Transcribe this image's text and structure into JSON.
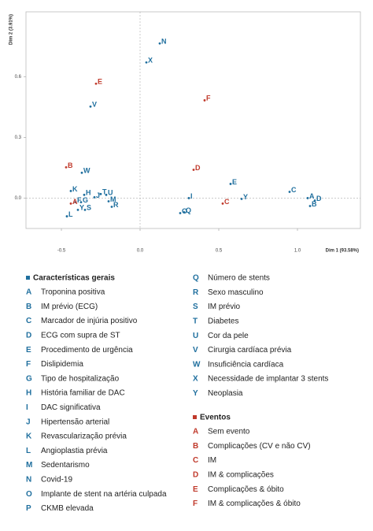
{
  "chart_data": {
    "type": "scatter",
    "x_label": "Dim 1 (93.58%)",
    "y_label": "Dim 2 (3.91%)",
    "xlim": [
      -0.725,
      1.4
    ],
    "ylim": [
      -0.15,
      0.92
    ],
    "xticks": [
      -0.5,
      {
        "value": 0,
        "label": "0.0"
      },
      0.5,
      {
        "value": 1,
        "label": "1.0"
      }
    ],
    "yticks": [
      {
        "value": 0,
        "label": "0.0"
      },
      0.3,
      0.6
    ],
    "series": [
      {
        "name": "Características gerais",
        "color": "#1f6f9e",
        "labels": [
          "N",
          "X",
          "V",
          "W",
          "E",
          "C",
          "K",
          "A",
          "D",
          "B",
          "H",
          "T",
          "U",
          "J",
          "I",
          "Y",
          "F",
          "G",
          "M",
          "R",
          "Y",
          "S",
          "O",
          "Q",
          "L"
        ],
        "x": [
          0.125,
          0.04,
          -0.315,
          -0.37,
          0.575,
          0.95,
          -0.44,
          1.065,
          1.11,
          1.08,
          -0.355,
          -0.25,
          -0.215,
          -0.29,
          0.31,
          0.645,
          -0.41,
          -0.375,
          -0.2,
          -0.18,
          -0.395,
          -0.35,
          0.255,
          0.28,
          -0.465
        ],
        "values": [
          0.764,
          0.67,
          0.452,
          0.125,
          0.07,
          0.031,
          0.035,
          0.0,
          -0.012,
          -0.039,
          0.016,
          0.02,
          0.016,
          0.004,
          0.0,
          -0.004,
          -0.02,
          -0.02,
          -0.016,
          -0.043,
          -0.058,
          -0.058,
          -0.074,
          -0.07,
          -0.09
        ],
        "legend_items": [
          {
            "key": "A",
            "text": "Troponina positiva"
          },
          {
            "key": "B",
            "text": "IM prévio (ECG)"
          },
          {
            "key": "C",
            "text": "Marcador de injúria positivo"
          },
          {
            "key": "D",
            "text": "ECG com supra de ST"
          },
          {
            "key": "E",
            "text": "Procedimento de urgência"
          },
          {
            "key": "F",
            "text": "Dislipidemia"
          },
          {
            "key": "G",
            "text": "Tipo de hospitalização"
          },
          {
            "key": "H",
            "text": "História familiar de DAC"
          },
          {
            "key": "I",
            "text": "DAC significativa"
          },
          {
            "key": "J",
            "text": "Hipertensão arterial"
          },
          {
            "key": "K",
            "text": "Revascularização prévia"
          },
          {
            "key": "L",
            "text": "Angioplastia prévia"
          },
          {
            "key": "M",
            "text": "Sedentarismo"
          },
          {
            "key": "N",
            "text": "Covid-19"
          },
          {
            "key": "O",
            "text": "Implante de stent na artéria culpada"
          },
          {
            "key": "P",
            "text": "CKMB elevada"
          },
          {
            "key": "Q",
            "text": "Número de stents"
          },
          {
            "key": "R",
            "text": "Sexo masculino"
          },
          {
            "key": "S",
            "text": "IM prévio"
          },
          {
            "key": "T",
            "text": "Diabetes"
          },
          {
            "key": "U",
            "text": "Cor da pele"
          },
          {
            "key": "V",
            "text": "Cirurgia cardíaca prévia"
          },
          {
            "key": "W",
            "text": "Insuficiência cardíaca"
          },
          {
            "key": "X",
            "text": "Necessidade de implantar 3 stents"
          },
          {
            "key": "Y",
            "text": "Neoplasia"
          }
        ]
      },
      {
        "name": "Eventos",
        "color": "#c0392b",
        "labels": [
          "E",
          "F",
          "B",
          "D",
          "A",
          "C"
        ],
        "x": [
          -0.28,
          0.41,
          -0.47,
          0.34,
          -0.44,
          0.525
        ],
        "values": [
          0.565,
          0.483,
          0.152,
          0.14,
          -0.027,
          -0.027
        ],
        "legend_items": [
          {
            "key": "A",
            "text": "Sem evento"
          },
          {
            "key": "B",
            "text": "Complicações (CV e não CV)"
          },
          {
            "key": "C",
            "text": "IM"
          },
          {
            "key": "D",
            "text": "IM & complicações"
          },
          {
            "key": "E",
            "text": "Complicações & óbito"
          },
          {
            "key": "F",
            "text": "IM & complicações & óbito"
          }
        ]
      }
    ]
  }
}
